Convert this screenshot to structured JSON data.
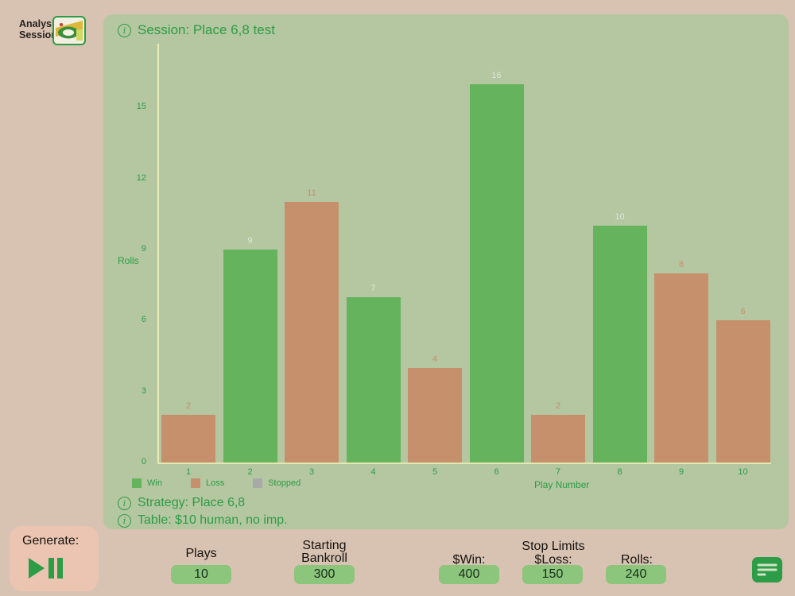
{
  "header": {
    "app_title_line1": "Analysis",
    "app_title_line2": "Session"
  },
  "panel": {
    "session_title": "Session: Place 6,8 test",
    "strategy": "Strategy: Place 6,8",
    "table": "Table: $10 human, no imp."
  },
  "chart_data": {
    "type": "bar",
    "title": "Session: Place 6,8 test",
    "xlabel": "Play Number",
    "ylabel": "Rolls",
    "categories": [
      "1",
      "2",
      "3",
      "4",
      "5",
      "6",
      "7",
      "8",
      "9",
      "10"
    ],
    "values": [
      2,
      9,
      11,
      7,
      4,
      16,
      2,
      10,
      8,
      6
    ],
    "bar_status": [
      "loss",
      "win",
      "loss",
      "win",
      "loss",
      "win",
      "loss",
      "win",
      "loss",
      "loss"
    ],
    "yticks": [
      0,
      3,
      6,
      9,
      12,
      15
    ],
    "ylim": [
      0,
      17.7
    ],
    "grid": false,
    "legend_position": "bottom",
    "legend": [
      {
        "label": "Win",
        "key": "win"
      },
      {
        "label": "Loss",
        "key": "loss"
      },
      {
        "label": "Stopped",
        "key": "stopped"
      }
    ]
  },
  "controls": {
    "generate_label": "Generate:",
    "plays_label": "Plays",
    "plays_value": "10",
    "bankroll_label_line1": "Starting",
    "bankroll_label_line2": "Bankroll",
    "bankroll_value": "300",
    "stop_limits_label": "Stop Limits",
    "win_label": "$Win:",
    "win_value": "400",
    "loss_label": "$Loss:",
    "loss_value": "150",
    "rolls_label": "Rolls:",
    "rolls_value": "240"
  },
  "icons": {
    "app_icon": "craps-table-app-icon",
    "info_icon": "info-circle",
    "play_pause_icon": "play-pause",
    "notes_icon": "session-notes"
  },
  "colors": {
    "page_bg": "#d8c2b2",
    "panel_bg": "#b4c7a1",
    "accent_green": "#2d9c46",
    "win": "#66b35e",
    "loss": "#c6906c",
    "stopped": "#a9a9a9",
    "axis": "#e9ecb8",
    "input_bg": "#8cc57c",
    "generate_card_bg": "#ecc5b2",
    "win_value_label": "#dfe3d8",
    "loss_value_label": "#c6906c"
  }
}
